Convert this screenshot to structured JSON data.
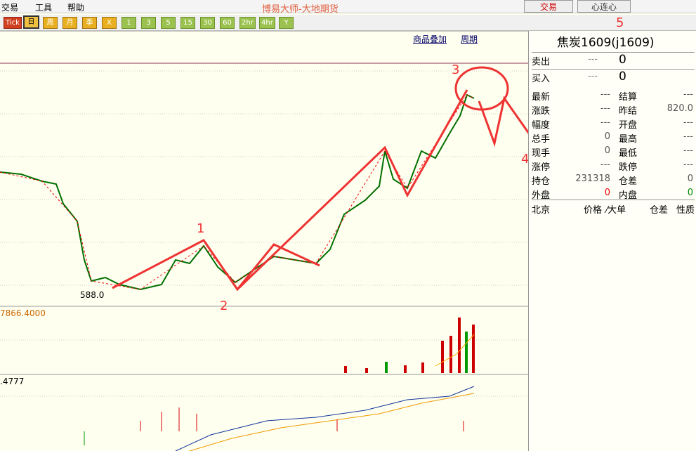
{
  "menu": [
    "交易",
    "工具",
    "帮助"
  ],
  "window_title": "博易大师-大地期货",
  "top_buttons": [
    "交易",
    "心连心"
  ],
  "toolbar": [
    "Tick",
    "日",
    "周",
    "月",
    "季",
    "X",
    "1",
    "3",
    "5",
    "15",
    "30",
    "60",
    "2hr",
    "4hr",
    "Y"
  ],
  "links": [
    "商品叠加",
    "周期"
  ],
  "quote": {
    "title": "焦炭1609(j1609)",
    "sell": {
      "label": "卖出",
      "dash": "---",
      "value": "0"
    },
    "buy": {
      "label": "买入",
      "dash": "---",
      "value": "0"
    },
    "rows": [
      [
        "最新",
        "---",
        "结算",
        "---"
      ],
      [
        "涨跌",
        "---",
        "昨结",
        "820.0"
      ],
      [
        "幅度",
        "---",
        "开盘",
        "---"
      ],
      [
        "总手",
        "0",
        "最高",
        "---"
      ],
      [
        "现手",
        "0",
        "最低",
        "---"
      ],
      [
        "涨停",
        "---",
        "跌停",
        "---"
      ],
      [
        "持仓",
        "231318",
        "仓差",
        "0"
      ],
      [
        "外盘",
        "0",
        "内盘",
        "0"
      ]
    ],
    "footer": [
      "北京",
      "价格",
      "⁄大单",
      "仓差",
      "性质"
    ]
  },
  "chart": {
    "annotations": [
      "1",
      "2",
      "3",
      "4",
      "5"
    ],
    "low_label": "588.0",
    "volume_label": "7866.4000",
    "macd_label": ".4777"
  }
}
